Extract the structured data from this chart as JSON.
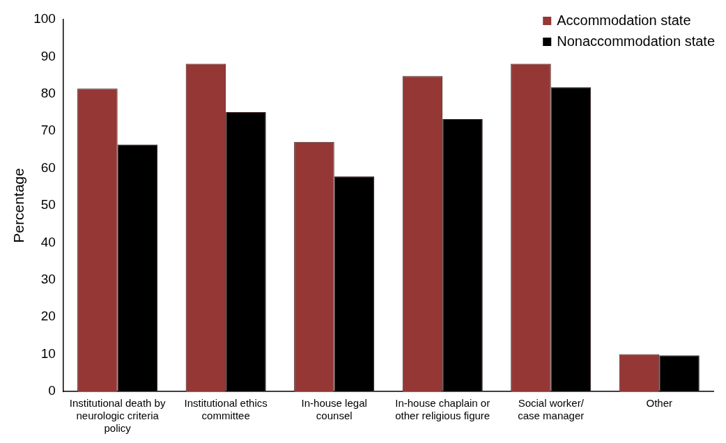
{
  "chart_data": {
    "type": "bar",
    "ylabel": "Percentage",
    "categories": [
      "Institutional death by\nneurologic criteria\npolicy",
      "Institutional ethics\ncommittee",
      "In-house legal\ncounsel",
      "In-house chaplain or\nother religious figure",
      "Social worker/\ncase manager",
      "Other"
    ],
    "series": [
      {
        "name": "Accommodation state",
        "color": "#953735",
        "values": [
          81.4,
          88.1,
          67.1,
          84.8,
          88.1,
          10.0
        ]
      },
      {
        "name": "Nonaccommodation state",
        "color": "#000000",
        "values": [
          66.4,
          75.1,
          57.8,
          73.2,
          81.8,
          9.7
        ]
      }
    ],
    "ylim": [
      0,
      100
    ],
    "yticks": [
      0,
      10,
      20,
      30,
      40,
      50,
      60,
      70,
      80,
      90,
      100
    ],
    "grid": false,
    "legend": "top right"
  }
}
